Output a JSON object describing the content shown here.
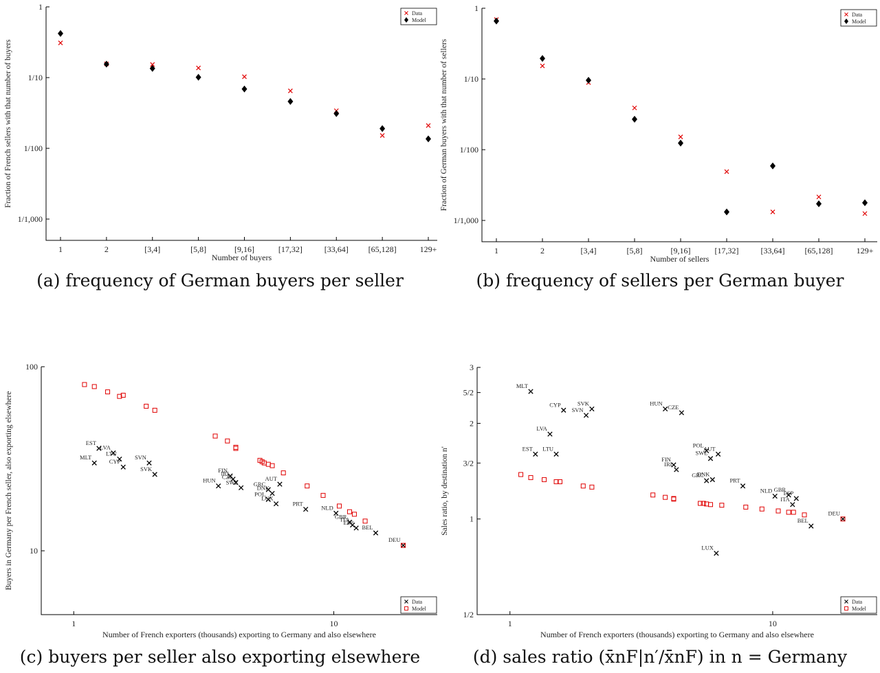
{
  "captions": {
    "a": "(a) frequency of German buyers per seller",
    "b": "(b) frequency of sellers per German buyer",
    "c": "(c) buyers per seller also exporting elsewhere",
    "d": "(d) sales ratio (x̄nF|n′/x̄nF) in n = Germany"
  },
  "colors": {
    "data": "#e00000",
    "model": "#000000"
  },
  "chart_data": [
    {
      "id": "a",
      "type": "scatter",
      "xlabel": "Number of buyers",
      "ylabel": "Fraction of French sellers with that number of buyers",
      "yscale": "log",
      "ylim": [
        0.0005,
        1
      ],
      "yticks": [
        1,
        0.1,
        0.01,
        0.001
      ],
      "yticklabels": [
        "1",
        "1/10",
        "1/100",
        "1/1,000"
      ],
      "categories": [
        "1",
        "2",
        "[3,4]",
        "[5,8]",
        "[9,16]",
        "[17,32]",
        "[33,64]",
        "[65,128]",
        "129+"
      ],
      "legend": [
        "Data",
        "Model"
      ],
      "legend_position": "top-right",
      "series": [
        {
          "name": "Data",
          "marker": "x",
          "values": [
            0.31,
            0.156,
            0.153,
            0.137,
            0.103,
            0.065,
            0.034,
            0.0152,
            0.021
          ]
        },
        {
          "name": "Model",
          "marker": "diamond",
          "values": [
            0.42,
            0.155,
            0.135,
            0.101,
            0.069,
            0.046,
            0.031,
            0.019,
            0.0136
          ]
        }
      ]
    },
    {
      "id": "b",
      "type": "scatter",
      "xlabel": "Number of sellers",
      "ylabel": "Fraction of German buyers with that number of sellers",
      "yscale": "log",
      "ylim": [
        0.0005,
        1
      ],
      "yticks": [
        1,
        0.1,
        0.01,
        0.001
      ],
      "yticklabels": [
        "1",
        "1/10",
        "1/100",
        "1/1,000"
      ],
      "categories": [
        "1",
        "2",
        "[3,4]",
        "[5,8]",
        "[9,16]",
        "[17,32]",
        "[33,64]",
        "[65,128]",
        "129+"
      ],
      "legend": [
        "Data",
        "Model"
      ],
      "legend_position": "top-right",
      "series": [
        {
          "name": "Data",
          "marker": "x",
          "values": [
            0.69,
            0.153,
            0.089,
            0.039,
            0.0152,
            0.0049,
            0.00132,
            0.00215,
            0.00125
          ]
        },
        {
          "name": "Model",
          "marker": "diamond",
          "values": [
            0.66,
            0.195,
            0.096,
            0.027,
            0.0124,
            0.00132,
            0.0059,
            0.00172,
            0.00178
          ]
        }
      ]
    },
    {
      "id": "c",
      "type": "scatter",
      "xlabel": "Number of French exporters (thousands) exporting to Germany and also elsewhere",
      "ylabel": "Buyers in Germany per French seller, also exporting elsewhere",
      "xscale": "log",
      "yscale": "log",
      "xlim": [
        0.75,
        25
      ],
      "ylim": [
        4.5,
        100
      ],
      "xticks": [
        1,
        10
      ],
      "xticklabels": [
        "1",
        "10"
      ],
      "yticks": [
        100,
        10
      ],
      "yticklabels": [
        "100",
        "10"
      ],
      "legend": [
        "Data",
        "Model"
      ],
      "legend_position": "bottom-right",
      "series": [
        {
          "name": "Data",
          "marker": "x",
          "points": [
            {
              "label": "MLT",
              "x": 1.2,
              "y": 30.0
            },
            {
              "label": "EST",
              "x": 1.25,
              "y": 36.0
            },
            {
              "label": "LVA",
              "x": 1.42,
              "y": 34.0
            },
            {
              "label": "LTU",
              "x": 1.5,
              "y": 31.5
            },
            {
              "label": "CYP",
              "x": 1.55,
              "y": 28.5
            },
            {
              "label": "SVN",
              "x": 1.95,
              "y": 30.0
            },
            {
              "label": "SVK",
              "x": 2.05,
              "y": 26.0
            },
            {
              "label": "HUN",
              "x": 3.6,
              "y": 22.5
            },
            {
              "label": "FIN",
              "x": 4.0,
              "y": 25.5
            },
            {
              "label": "IRL",
              "x": 4.1,
              "y": 24.5
            },
            {
              "label": "CZE",
              "x": 4.2,
              "y": 23.5
            },
            {
              "label": "SWE",
              "x": 4.4,
              "y": 22.0
            },
            {
              "label": "GRC",
              "x": 5.6,
              "y": 21.5
            },
            {
              "label": "DNK",
              "x": 5.8,
              "y": 20.5
            },
            {
              "label": "POL",
              "x": 5.6,
              "y": 19.0
            },
            {
              "label": "AUT",
              "x": 6.2,
              "y": 23.0
            },
            {
              "label": "LUX",
              "x": 6.0,
              "y": 18.0
            },
            {
              "label": "PRT",
              "x": 7.8,
              "y": 16.8
            },
            {
              "label": "NLD",
              "x": 10.2,
              "y": 16.0
            },
            {
              "label": "GBR",
              "x": 11.5,
              "y": 14.3
            },
            {
              "label": "ITA",
              "x": 11.8,
              "y": 13.8
            },
            {
              "label": "ESP",
              "x": 12.2,
              "y": 13.3
            },
            {
              "label": "BEL",
              "x": 14.5,
              "y": 12.5
            },
            {
              "label": "DEU",
              "x": 18.5,
              "y": 10.7
            }
          ]
        },
        {
          "name": "Model",
          "marker": "square",
          "points": [
            {
              "x": 1.1,
              "y": 80
            },
            {
              "x": 1.2,
              "y": 78
            },
            {
              "x": 1.35,
              "y": 73
            },
            {
              "x": 1.5,
              "y": 69
            },
            {
              "x": 1.55,
              "y": 70
            },
            {
              "x": 1.9,
              "y": 61
            },
            {
              "x": 2.05,
              "y": 58
            },
            {
              "x": 3.5,
              "y": 42
            },
            {
              "x": 3.9,
              "y": 39.5
            },
            {
              "x": 4.2,
              "y": 36.5
            },
            {
              "x": 4.2,
              "y": 36.0
            },
            {
              "x": 5.2,
              "y": 31
            },
            {
              "x": 5.3,
              "y": 30.5
            },
            {
              "x": 5.4,
              "y": 30
            },
            {
              "x": 5.6,
              "y": 29.5
            },
            {
              "x": 5.8,
              "y": 29
            },
            {
              "x": 6.4,
              "y": 26.5
            },
            {
              "x": 7.9,
              "y": 22.5
            },
            {
              "x": 9.1,
              "y": 20
            },
            {
              "x": 10.5,
              "y": 17.5
            },
            {
              "x": 11.5,
              "y": 16.3
            },
            {
              "x": 12.0,
              "y": 15.8
            },
            {
              "x": 13.2,
              "y": 14.5
            },
            {
              "x": 18.5,
              "y": 10.7
            }
          ]
        }
      ]
    },
    {
      "id": "d",
      "type": "scatter",
      "xlabel": "Number of French exporters (thousands) exporting to Germany and also elsewhere",
      "ylabel": "Sales ratio, by destination n'",
      "xscale": "log",
      "yscale": "log",
      "xlim": [
        0.75,
        25
      ],
      "ylim": [
        0.5,
        3
      ],
      "xticks": [
        1,
        10
      ],
      "xticklabels": [
        "1",
        "10"
      ],
      "yticks": [
        3,
        2.5,
        2,
        1.5,
        1,
        0.5
      ],
      "yticklabels": [
        "3",
        "5/2",
        "2",
        "3/2",
        "1",
        "1/2"
      ],
      "legend": [
        "Data",
        "Model"
      ],
      "legend_position": "bottom-right",
      "series": [
        {
          "name": "Data",
          "marker": "x",
          "points": [
            {
              "label": "MLT",
              "x": 1.2,
              "y": 2.52
            },
            {
              "label": "EST",
              "x": 1.25,
              "y": 1.6
            },
            {
              "label": "LVA",
              "x": 1.42,
              "y": 1.85
            },
            {
              "label": "LTU",
              "x": 1.5,
              "y": 1.6
            },
            {
              "label": "CYP",
              "x": 1.6,
              "y": 2.2
            },
            {
              "label": "SVN",
              "x": 1.95,
              "y": 2.12
            },
            {
              "label": "SVK",
              "x": 2.05,
              "y": 2.22
            },
            {
              "label": "HUN",
              "x": 3.9,
              "y": 2.22
            },
            {
              "label": "CZE",
              "x": 4.5,
              "y": 2.16
            },
            {
              "label": "FIN",
              "x": 4.2,
              "y": 1.48
            },
            {
              "label": "IRL",
              "x": 4.3,
              "y": 1.43
            },
            {
              "label": "POL",
              "x": 5.6,
              "y": 1.64
            },
            {
              "label": "AUT",
              "x": 6.2,
              "y": 1.6
            },
            {
              "label": "SWE",
              "x": 5.8,
              "y": 1.55
            },
            {
              "label": "GRC",
              "x": 5.6,
              "y": 1.32
            },
            {
              "label": "DNK",
              "x": 5.9,
              "y": 1.33
            },
            {
              "label": "PRT",
              "x": 7.7,
              "y": 1.27
            },
            {
              "label": "NLD",
              "x": 10.2,
              "y": 1.18
            },
            {
              "label": "GBR",
              "x": 11.5,
              "y": 1.19
            },
            {
              "label": "ESP",
              "x": 12.3,
              "y": 1.16
            },
            {
              "label": "ITA",
              "x": 11.9,
              "y": 1.11
            },
            {
              "label": "BEL",
              "x": 14.0,
              "y": 0.95
            },
            {
              "label": "LUX",
              "x": 6.1,
              "y": 0.78
            },
            {
              "label": "DEU",
              "x": 18.5,
              "y": 1.0
            }
          ]
        },
        {
          "name": "Model",
          "marker": "square",
          "points": [
            {
              "x": 1.1,
              "y": 1.38
            },
            {
              "x": 1.2,
              "y": 1.35
            },
            {
              "x": 1.35,
              "y": 1.33
            },
            {
              "x": 1.5,
              "y": 1.31
            },
            {
              "x": 1.55,
              "y": 1.31
            },
            {
              "x": 1.9,
              "y": 1.27
            },
            {
              "x": 2.05,
              "y": 1.26
            },
            {
              "x": 3.5,
              "y": 1.19
            },
            {
              "x": 3.9,
              "y": 1.17
            },
            {
              "x": 4.2,
              "y": 1.16
            },
            {
              "x": 4.2,
              "y": 1.155
            },
            {
              "x": 5.3,
              "y": 1.12
            },
            {
              "x": 5.45,
              "y": 1.12
            },
            {
              "x": 5.6,
              "y": 1.115
            },
            {
              "x": 5.8,
              "y": 1.11
            },
            {
              "x": 6.4,
              "y": 1.105
            },
            {
              "x": 7.9,
              "y": 1.09
            },
            {
              "x": 9.1,
              "y": 1.075
            },
            {
              "x": 10.5,
              "y": 1.06
            },
            {
              "x": 11.5,
              "y": 1.05
            },
            {
              "x": 12.0,
              "y": 1.05
            },
            {
              "x": 13.2,
              "y": 1.03
            },
            {
              "x": 18.5,
              "y": 1.0
            }
          ]
        }
      ]
    }
  ]
}
